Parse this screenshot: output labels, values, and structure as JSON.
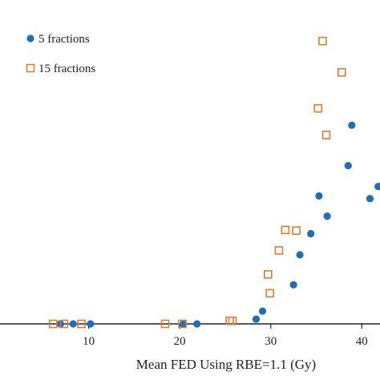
{
  "chart_data": {
    "type": "scatter",
    "title": "",
    "xlabel": "Mean FED Using RBE=1.1 (Gy)",
    "ylabel": "",
    "xlim": [
      0,
      42
    ],
    "ylim": [
      0,
      0.9
    ],
    "x_ticks": [
      10,
      20,
      30,
      40
    ],
    "grid": false,
    "legend_position": "top-left",
    "series": [
      {
        "name": "5 fractions",
        "marker": "filled-circle",
        "color": "#1f6fb8",
        "points": [
          [
            6.9,
            0
          ],
          [
            8.3,
            0
          ],
          [
            10.2,
            0
          ],
          [
            20.4,
            0
          ],
          [
            21.9,
            0
          ],
          [
            28.4,
            0.014
          ],
          [
            29.1,
            0.038
          ],
          [
            32.5,
            0.116
          ],
          [
            33.2,
            0.205
          ],
          [
            34.4,
            0.268
          ],
          [
            35.3,
            0.38
          ],
          [
            36.2,
            0.32
          ],
          [
            38.5,
            0.47
          ],
          [
            38.9,
            0.59
          ],
          [
            40.9,
            0.372
          ],
          [
            41.8,
            0.408
          ]
        ]
      },
      {
        "name": "15 fractions",
        "marker": "open-square",
        "color": "#e07a2e",
        "points": [
          [
            6.1,
            0
          ],
          [
            7.3,
            0
          ],
          [
            9.2,
            0
          ],
          [
            18.4,
            0
          ],
          [
            20.3,
            0
          ],
          [
            25.5,
            0.009
          ],
          [
            25.8,
            0.009
          ],
          [
            29.9,
            0.091
          ],
          [
            29.7,
            0.147
          ],
          [
            30.9,
            0.218
          ],
          [
            31.6,
            0.279
          ],
          [
            32.8,
            0.277
          ],
          [
            35.2,
            0.64
          ],
          [
            35.7,
            0.84
          ],
          [
            36.1,
            0.561
          ],
          [
            37.8,
            0.747
          ]
        ]
      }
    ]
  }
}
